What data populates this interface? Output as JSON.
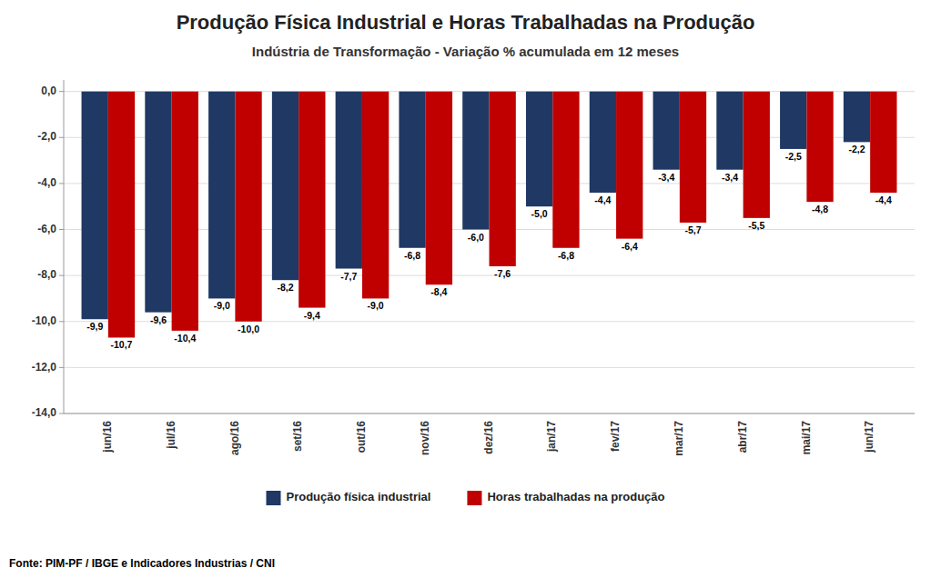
{
  "chart_data": {
    "type": "bar",
    "title": "Produção Física Industrial e Horas Trabalhadas na Produção",
    "subtitle": "Indústria de Transformação - Variação % acumulada em 12 meses",
    "source": "Fonte: PIM-PF / IBGE e Indicadores Industrias / CNI",
    "categories": [
      "jun/16",
      "jul/16",
      "ago/16",
      "set/16",
      "out/16",
      "nov/16",
      "dez/16",
      "jan/17",
      "fev/17",
      "mar/17",
      "abr/17",
      "mai/17",
      "jun/17"
    ],
    "series": [
      {
        "name": "Produção física industrial",
        "color": "#1F3864",
        "values": [
          -9.9,
          -9.6,
          -9.0,
          -8.2,
          -7.7,
          -6.8,
          -6.0,
          -5.0,
          -4.4,
          -3.4,
          -3.4,
          -2.5,
          -2.2
        ],
        "value_labels": [
          "-9,9",
          "-9,6",
          "-9,0",
          "-8,2",
          "-7,7",
          "-6,8",
          "-6,0",
          "-5,0",
          "-4,4",
          "-3,4",
          "-3,4",
          "-2,5",
          "-2,2"
        ]
      },
      {
        "name": "Horas trabalhadas na produção",
        "color": "#C00000",
        "values": [
          -10.7,
          -10.4,
          -10.0,
          -9.4,
          -9.0,
          -8.4,
          -7.6,
          -6.8,
          -6.4,
          -5.7,
          -5.5,
          -4.8,
          -4.4
        ],
        "value_labels": [
          "-10,7",
          "-10,4",
          "-10,0",
          "-9,4",
          "-9,0",
          "-8,4",
          "-7,6",
          "-6,8",
          "-6,4",
          "-5,7",
          "-5,5",
          "-4,8",
          "-4,4"
        ]
      }
    ],
    "ylim": [
      -14.0,
      0.5
    ],
    "yticks": [
      {
        "value": 0.0,
        "label": "0,0"
      },
      {
        "value": -2.0,
        "label": "-2,0"
      },
      {
        "value": -4.0,
        "label": "-4,0"
      },
      {
        "value": -6.0,
        "label": "-6,0"
      },
      {
        "value": -8.0,
        "label": "-8,0"
      },
      {
        "value": -10.0,
        "label": "-10,0"
      },
      {
        "value": -12.0,
        "label": "-12,0"
      },
      {
        "value": -14.0,
        "label": "-14,0"
      }
    ],
    "grid": true,
    "legend": "bottom",
    "data_labels": true
  }
}
